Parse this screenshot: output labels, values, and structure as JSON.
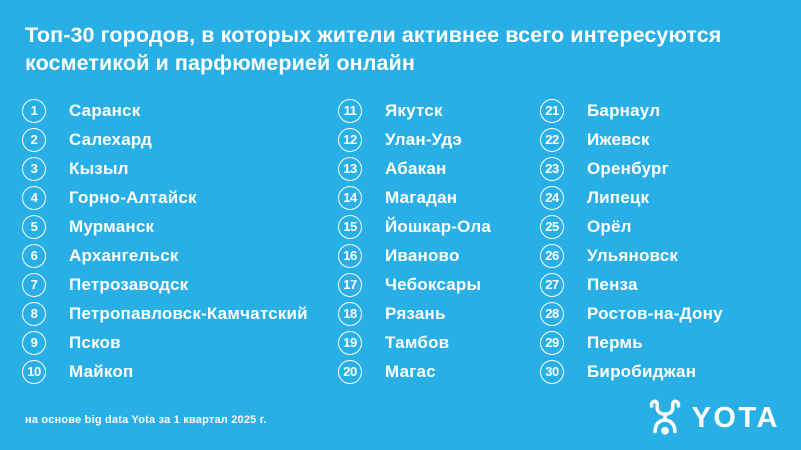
{
  "title": "Топ-30 городов, в которых жители активнее всего интересуются косметикой и парфюмерией онлайн",
  "colors": {
    "background": "#28AFE6",
    "text": "#FFFFFF"
  },
  "list": {
    "columns": [
      {
        "items": [
          {
            "rank": "1",
            "city": "Саранск"
          },
          {
            "rank": "2",
            "city": "Салехард"
          },
          {
            "rank": "3",
            "city": "Кызыл"
          },
          {
            "rank": "4",
            "city": "Горно-Алтайск"
          },
          {
            "rank": "5",
            "city": "Мурманск"
          },
          {
            "rank": "6",
            "city": "Архангельск"
          },
          {
            "rank": "7",
            "city": "Петрозаводск"
          },
          {
            "rank": "8",
            "city": "Петропавловск-Камчатский"
          },
          {
            "rank": "9",
            "city": "Псков"
          },
          {
            "rank": "10",
            "city": "Майкоп"
          }
        ]
      },
      {
        "items": [
          {
            "rank": "11",
            "city": "Якутск"
          },
          {
            "rank": "12",
            "city": "Улан-Удэ"
          },
          {
            "rank": "13",
            "city": "Абакан"
          },
          {
            "rank": "14",
            "city": "Магадан"
          },
          {
            "rank": "15",
            "city": "Йошкар-Ола"
          },
          {
            "rank": "16",
            "city": "Иваново"
          },
          {
            "rank": "17",
            "city": "Чебоксары"
          },
          {
            "rank": "18",
            "city": "Рязань"
          },
          {
            "rank": "19",
            "city": "Тамбов"
          },
          {
            "rank": "20",
            "city": "Магас"
          }
        ]
      },
      {
        "items": [
          {
            "rank": "21",
            "city": "Барнаул"
          },
          {
            "rank": "22",
            "city": "Ижевск"
          },
          {
            "rank": "23",
            "city": "Оренбург"
          },
          {
            "rank": "24",
            "city": "Липецк"
          },
          {
            "rank": "25",
            "city": "Орёл"
          },
          {
            "rank": "26",
            "city": "Ульяновск"
          },
          {
            "rank": "27",
            "city": "Пенза"
          },
          {
            "rank": "28",
            "city": "Ростов-на-Дону"
          },
          {
            "rank": "29",
            "city": "Пермь"
          },
          {
            "rank": "30",
            "city": "Биробиджан"
          }
        ]
      }
    ]
  },
  "footer": {
    "note": "на основе big data Yota за 1 квартал 2025 г."
  },
  "logo": {
    "text": "YOTA",
    "mark_icon": "yota-figure-icon"
  }
}
